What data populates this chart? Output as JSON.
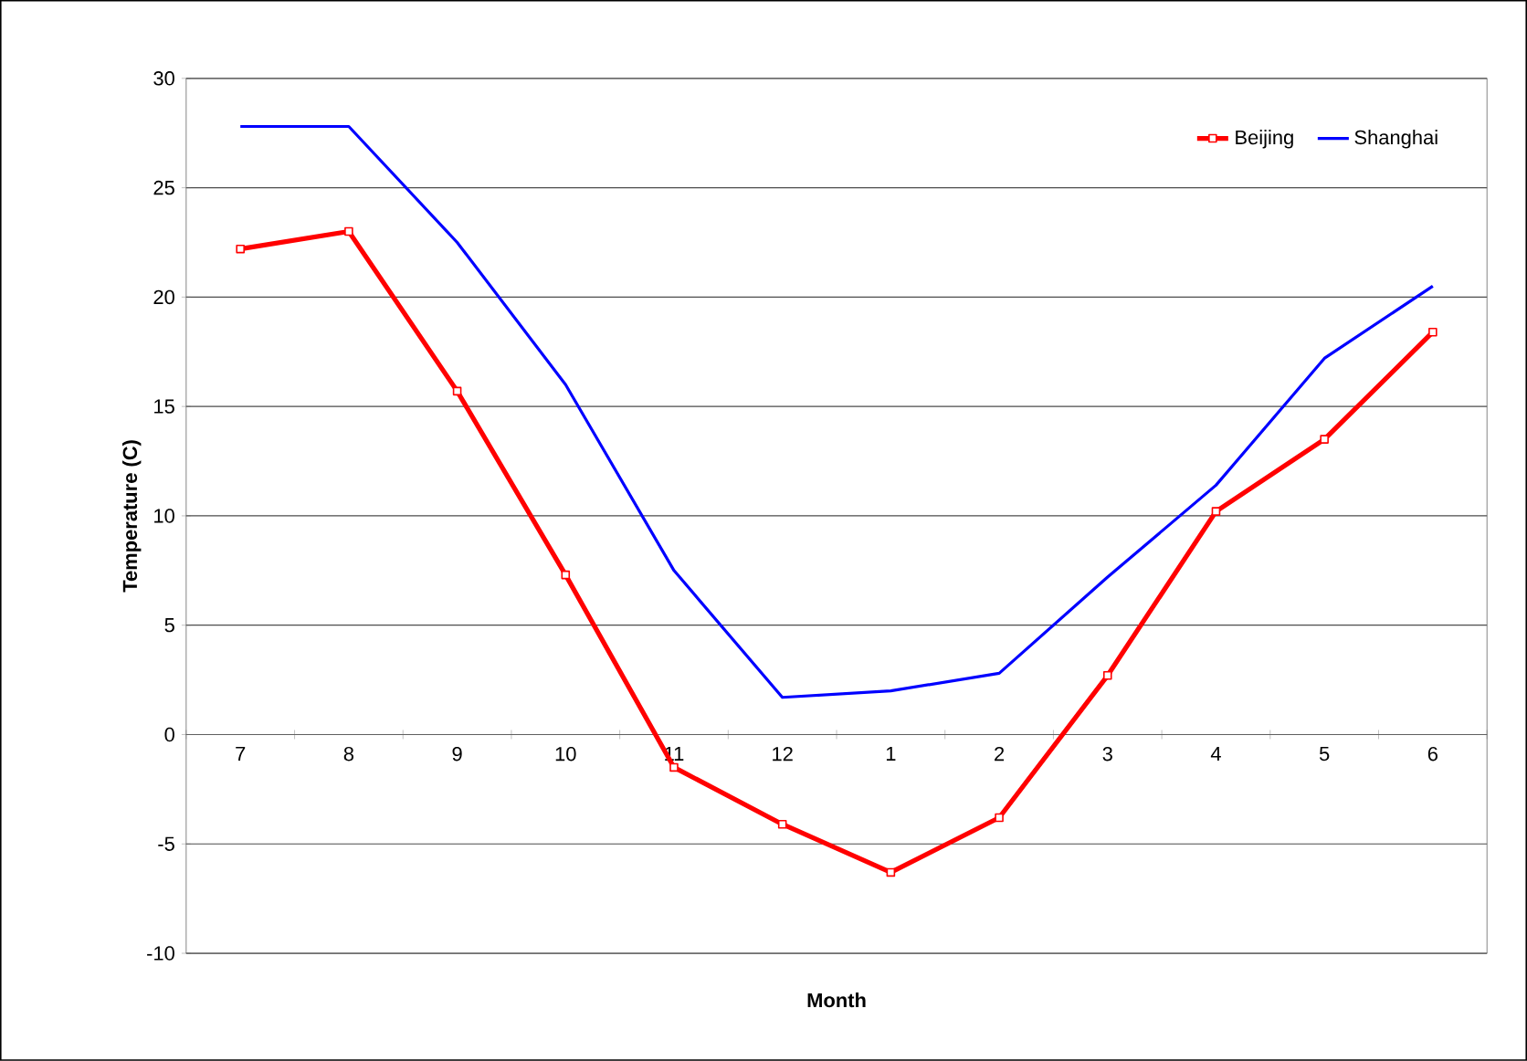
{
  "chart_data": {
    "type": "line",
    "xlabel": "Month",
    "ylabel": "Temperature (C)",
    "categories": [
      "7",
      "8",
      "9",
      "10",
      "11",
      "12",
      "1",
      "2",
      "3",
      "4",
      "5",
      "6"
    ],
    "series": [
      {
        "name": "Beijing",
        "color": "#ff0000",
        "marker": "square",
        "values": [
          22.2,
          23.0,
          15.7,
          7.3,
          -1.5,
          -4.1,
          -6.3,
          -3.8,
          2.7,
          10.2,
          13.5,
          18.4
        ]
      },
      {
        "name": "Shanghai",
        "color": "#0000ff",
        "marker": "none",
        "values": [
          27.8,
          27.8,
          22.5,
          16.0,
          7.5,
          1.7,
          2.0,
          2.8,
          7.2,
          11.4,
          17.2,
          20.5
        ]
      }
    ],
    "ylim": [
      -10,
      30
    ],
    "yticks": [
      -10,
      -5,
      0,
      5,
      10,
      15,
      20,
      25,
      30
    ],
    "grid": "y",
    "legend": "top right",
    "line_style": "solid"
  }
}
